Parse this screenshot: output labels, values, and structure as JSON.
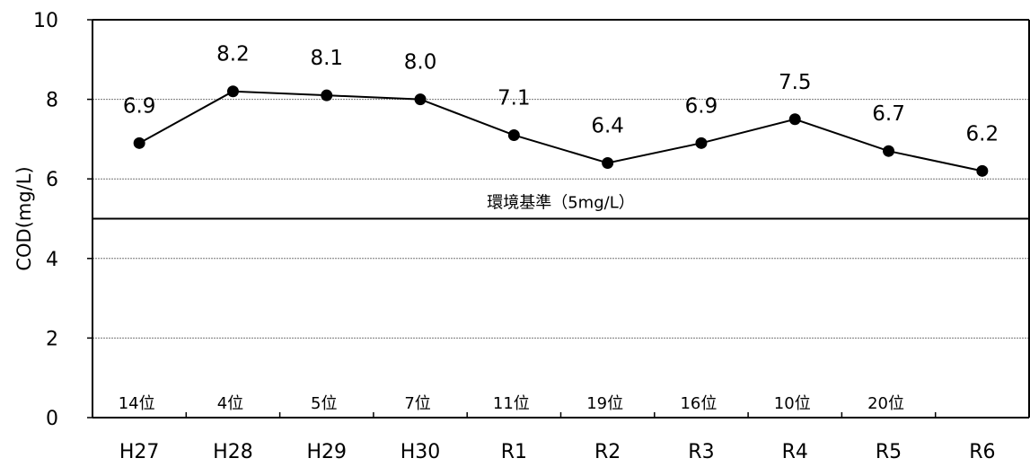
{
  "chart_data": {
    "type": "line",
    "title": "",
    "ylabel": "COD(mg/L)",
    "xlabel": "",
    "ylim": [
      0,
      10
    ],
    "yticks": [
      0,
      2,
      4,
      6,
      8,
      10
    ],
    "grid": true,
    "categories": [
      "H27",
      "H28",
      "H29",
      "H30",
      "R1",
      "R2",
      "R3",
      "R4",
      "R5",
      "R6"
    ],
    "series": [
      {
        "values": [
          6.9,
          8.2,
          8.1,
          8.0,
          7.1,
          6.4,
          6.9,
          7.5,
          6.7,
          6.2
        ]
      }
    ],
    "data_labels": [
      "6.9",
      "8.2",
      "8.1",
      "8.0",
      "7.1",
      "6.4",
      "6.9",
      "7.5",
      "6.7",
      "6.2"
    ],
    "ranks": [
      "14位",
      "4位",
      "5位",
      "7位",
      "11位",
      "19位",
      "16位",
      "10位",
      "20位",
      ""
    ],
    "reference_line": {
      "value": 5,
      "label": "環境基準（5mg/L）"
    }
  }
}
